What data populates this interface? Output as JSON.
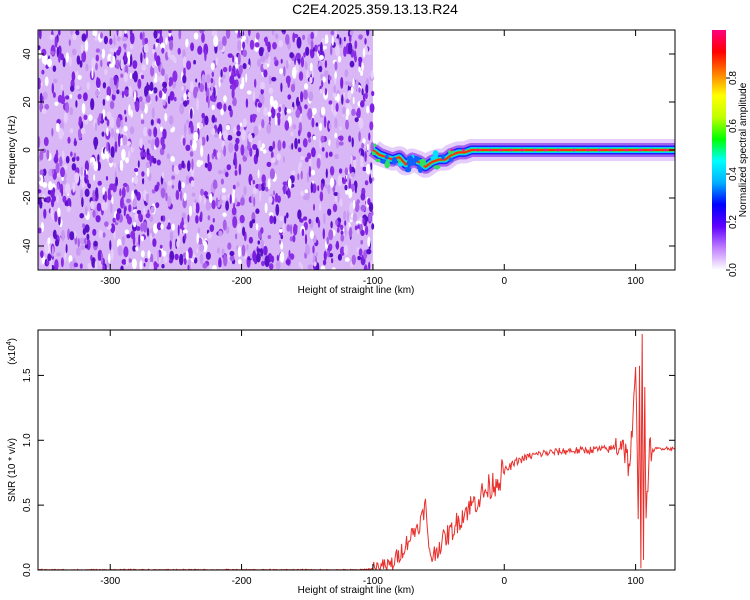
{
  "title": "C2E4.2025.359.13.13.R24",
  "colors": {
    "snr_line": "#e8302c",
    "noise_dense": "#7a1ee0",
    "noise_light": "#d9b6f5",
    "axis": "#000000"
  },
  "chart_data": [
    {
      "type": "heatmap",
      "title": "C2E4.2025.359.13.13.R24",
      "xlabel": "Height of straight line (km)",
      "ylabel": "Frequency (Hz)",
      "xlim": [
        -355,
        130
      ],
      "ylim": [
        -50,
        50
      ],
      "x_ticks": [
        -300,
        -200,
        -100,
        0,
        100
      ],
      "x_tick_labels": [
        "-300",
        "-200",
        "-100",
        "0",
        "100"
      ],
      "y_ticks": [
        -40,
        -20,
        0,
        20,
        40
      ],
      "y_tick_labels": [
        "-40",
        "-20",
        "0",
        "20",
        "40"
      ],
      "noise_region_x": [
        -355,
        -100
      ],
      "signal_track": {
        "x": [
          -100,
          -95,
          -90,
          -85,
          -80,
          -75,
          -70,
          -65,
          -60,
          -55,
          -50,
          -45,
          -40,
          -35,
          -30,
          -25,
          -20,
          -10,
          0,
          20,
          40,
          60,
          80,
          100,
          130
        ],
        "y": [
          0,
          -2,
          -3,
          -4,
          -3,
          -6,
          -4,
          -5,
          -7,
          -5,
          -4,
          -4,
          -2,
          -1,
          -1,
          0,
          0,
          0,
          0,
          0,
          0,
          0,
          0,
          0,
          0
        ]
      },
      "colorbar": {
        "label": "Normalized spectral amplitude",
        "range": [
          0,
          1
        ],
        "ticks": [
          0.0,
          0.2,
          0.4,
          0.6,
          0.8
        ],
        "tick_labels": [
          "0.0",
          "0.2",
          "0.4",
          "0.6",
          "0.8"
        ],
        "colors": [
          "#ffffff",
          "#c080ff",
          "#6000ff",
          "#0000ff",
          "#00b0ff",
          "#00ffff",
          "#00ff00",
          "#c0ff00",
          "#ffff00",
          "#ff8000",
          "#ff0000",
          "#ff0080"
        ]
      }
    },
    {
      "type": "line",
      "xlabel": "Height of straight line (km)",
      "ylabel": "SNR (10 * v/v)",
      "y_multiplier": "(x10",
      "y_multiplier_exp": "4",
      "y_multiplier_close": ")",
      "xlim": [
        -355,
        130
      ],
      "ylim": [
        0,
        1.85
      ],
      "x_ticks": [
        -300,
        -200,
        -100,
        0,
        100
      ],
      "x_tick_labels": [
        "-300",
        "-200",
        "-100",
        "0",
        "100"
      ],
      "y_ticks": [
        0.0,
        0.5,
        1.0,
        1.5
      ],
      "y_tick_labels": [
        "0.0",
        "0.5",
        "1.0",
        "1.5"
      ],
      "series": [
        {
          "x": [
            -355,
            -300,
            -250,
            -200,
            -150,
            -110,
            -100,
            -90,
            -85,
            -80,
            -75,
            -70,
            -65,
            -62,
            -60,
            -58,
            -55,
            -52,
            -50,
            -45,
            -40,
            -35,
            -30,
            -25,
            -20,
            -15,
            -10,
            -5,
            0,
            5,
            10,
            20,
            30,
            40,
            50,
            60,
            70,
            80,
            85,
            90,
            95,
            98,
            100,
            102,
            103,
            104,
            105,
            106,
            107,
            108,
            110,
            115,
            120,
            125,
            130
          ],
          "y": [
            0.0,
            0.0,
            0.0,
            0.0,
            0.0,
            0.0,
            0.01,
            0.02,
            0.05,
            0.12,
            0.2,
            0.28,
            0.35,
            0.42,
            0.52,
            0.2,
            0.1,
            0.14,
            0.18,
            0.25,
            0.3,
            0.38,
            0.45,
            0.5,
            0.55,
            0.6,
            0.65,
            0.7,
            0.76,
            0.8,
            0.84,
            0.88,
            0.9,
            0.91,
            0.92,
            0.92,
            0.93,
            0.93,
            0.95,
            1.0,
            0.8,
            1.1,
            1.55,
            0.4,
            1.6,
            0.05,
            1.85,
            0.1,
            1.4,
            0.3,
            0.9,
            0.93,
            0.94,
            0.94,
            0.93
          ]
        }
      ]
    }
  ]
}
